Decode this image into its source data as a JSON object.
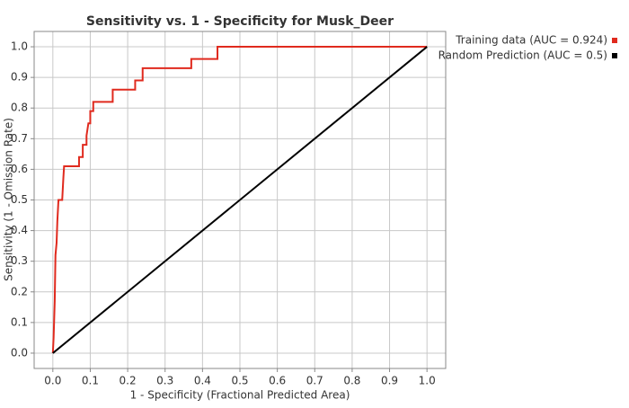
{
  "chart_data": {
    "type": "line",
    "title": "Sensitivity vs. 1 - Specificity for Musk_Deer",
    "x_label": "1 - Specificity  (Fractional Predicted Area)",
    "y_label": "Sensitivity  (1 - Omission Rate)",
    "xlim": [
      -0.05,
      1.05
    ],
    "ylim": [
      -0.05,
      1.05
    ],
    "xticks": [
      {
        "value": 0,
        "label": "0.0"
      },
      0.1,
      0.2,
      0.3,
      0.4,
      0.5,
      0.6,
      0.7,
      0.8,
      0.9,
      {
        "value": 1,
        "label": "1.0"
      }
    ],
    "yticks": [
      {
        "value": 0,
        "label": "0.0"
      },
      0.1,
      0.2,
      0.3,
      0.4,
      0.5,
      0.6,
      0.7,
      0.8,
      0.9,
      {
        "value": 1,
        "label": "1.0"
      }
    ],
    "grid": true,
    "legend": "top-right-outside",
    "series": [
      {
        "name": "Training data (AUC = 0.924)",
        "color": "#e02a1e",
        "x": [
          0,
          0.002,
          0.005,
          0.007,
          0.01,
          0.012,
          0.015,
          0.025,
          0.028,
          0.03,
          0.07,
          0.07,
          0.08,
          0.08,
          0.09,
          0.09,
          0.095,
          0.1,
          0.1,
          0.108,
          0.108,
          0.16,
          0.16,
          0.22,
          0.22,
          0.24,
          0.24,
          0.37,
          0.37,
          0.44,
          0.44,
          1.0
        ],
        "values": [
          0,
          0.05,
          0.17,
          0.32,
          0.36,
          0.43,
          0.5,
          0.5,
          0.57,
          0.61,
          0.61,
          0.64,
          0.64,
          0.68,
          0.68,
          0.71,
          0.75,
          0.75,
          0.79,
          0.79,
          0.82,
          0.82,
          0.86,
          0.86,
          0.89,
          0.89,
          0.93,
          0.93,
          0.96,
          0.96,
          1.0,
          1.0
        ]
      },
      {
        "name": "Random Prediction (AUC = 0.5)",
        "color": "#000000",
        "x": [
          0,
          1
        ],
        "values": [
          0,
          1
        ]
      }
    ]
  }
}
